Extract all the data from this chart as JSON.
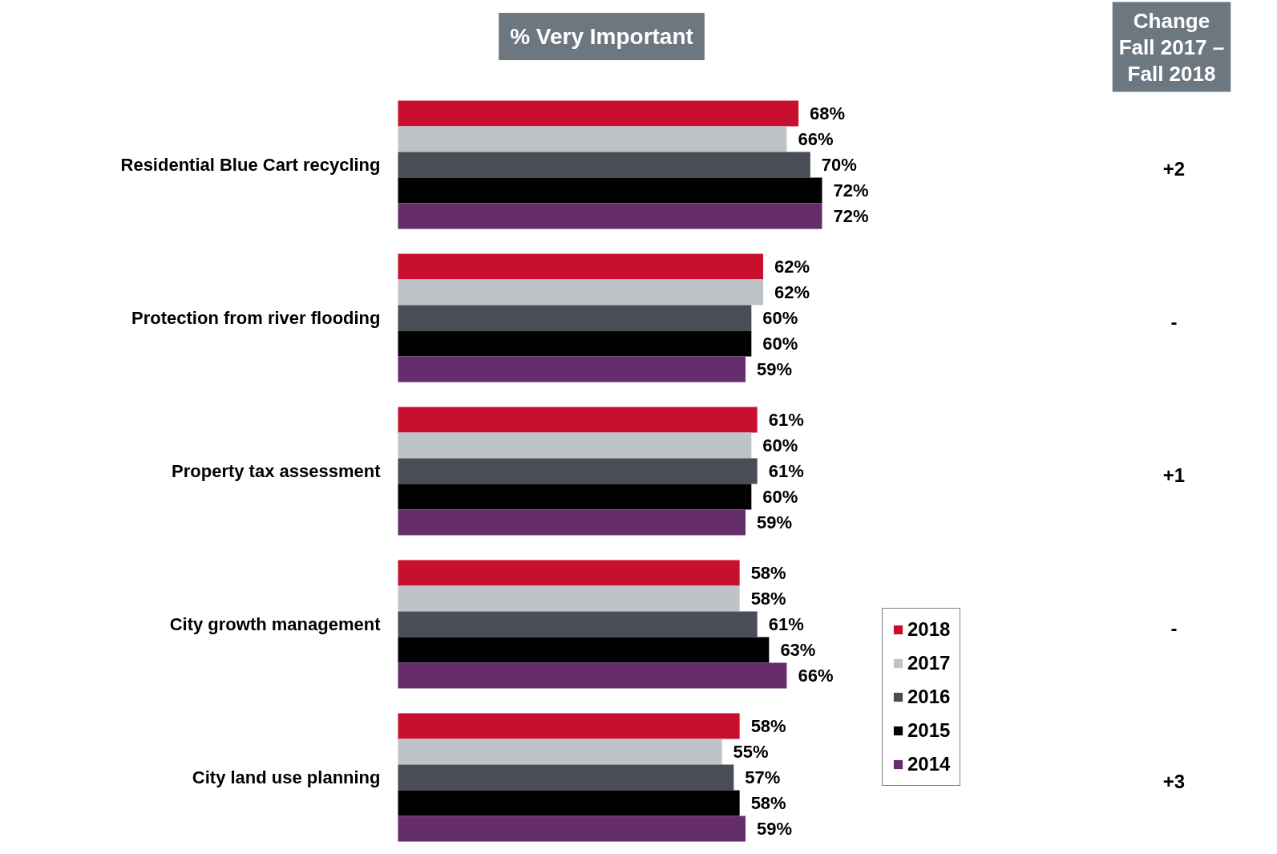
{
  "chart_data": {
    "type": "bar",
    "orientation": "horizontal",
    "title": "% Very Important",
    "categories": [
      "Residential Blue Cart recycling",
      "Protection from river flooding",
      "Property tax assessment",
      "City growth management",
      "City land use planning"
    ],
    "series": [
      {
        "name": "2018",
        "color": "#c8102e",
        "values": [
          68,
          62,
          61,
          58,
          58
        ],
        "value_labels": [
          "68%",
          "62%",
          "61%",
          "58%",
          "58%"
        ]
      },
      {
        "name": "2017",
        "color": "#bdc3c7",
        "values": [
          66,
          62,
          60,
          58,
          55
        ],
        "value_labels": [
          "66%",
          "62%",
          "60%",
          "58%",
          "55%"
        ]
      },
      {
        "name": "2016",
        "color": "#4a4d55",
        "values": [
          70,
          60,
          61,
          61,
          57
        ],
        "value_labels": [
          "70%",
          "60%",
          "61%",
          "61%",
          "57%"
        ]
      },
      {
        "name": "2015",
        "color": "#000000",
        "values": [
          72,
          60,
          60,
          63,
          58
        ],
        "value_labels": [
          "72%",
          "60%",
          "60%",
          "63%",
          "58%"
        ]
      },
      {
        "name": "2014",
        "color": "#652d6b",
        "values": [
          72,
          59,
          59,
          66,
          59
        ],
        "value_labels": [
          "72%",
          "59%",
          "59%",
          "66%",
          "59%"
        ]
      }
    ],
    "tick_labels": "y",
    "legend": "bottom right",
    "grid": false,
    "annotations": [
      "Change\nFall 2017 –\nFall 2018",
      "+2",
      "-",
      "+1",
      "-",
      "+3"
    ]
  }
}
